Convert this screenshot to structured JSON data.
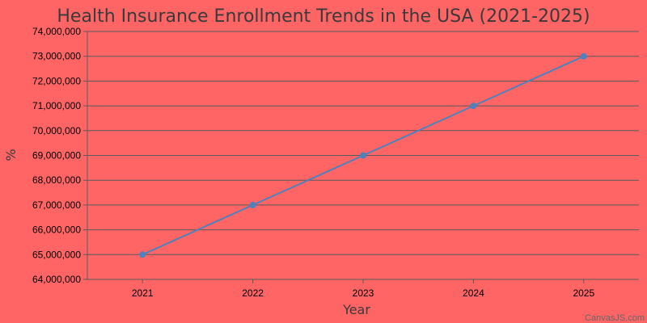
{
  "chart_data": {
    "type": "line",
    "title": "Health Insurance Enrollment Trends in the USA (2021-2025)",
    "xlabel": "Year",
    "ylabel": "%",
    "categories": [
      "2021",
      "2022",
      "2023",
      "2024",
      "2025"
    ],
    "series": [
      {
        "values": [
          65000000,
          67000000,
          69000000,
          71000000,
          73000000
        ]
      }
    ],
    "ylim": [
      64000000,
      74000000
    ],
    "yticks": [
      "64,000,000",
      "65,000,000",
      "66,000,000",
      "67,000,000",
      "68,000,000",
      "69,000,000",
      "70,000,000",
      "71,000,000",
      "72,000,000",
      "73,000,000",
      "74,000,000"
    ],
    "grid": true,
    "legend": "none"
  },
  "credit": "CanvasJS.com",
  "colors": {
    "background": "#ff6565",
    "line": "#4f81bc",
    "grid": "#5a5a5a"
  }
}
